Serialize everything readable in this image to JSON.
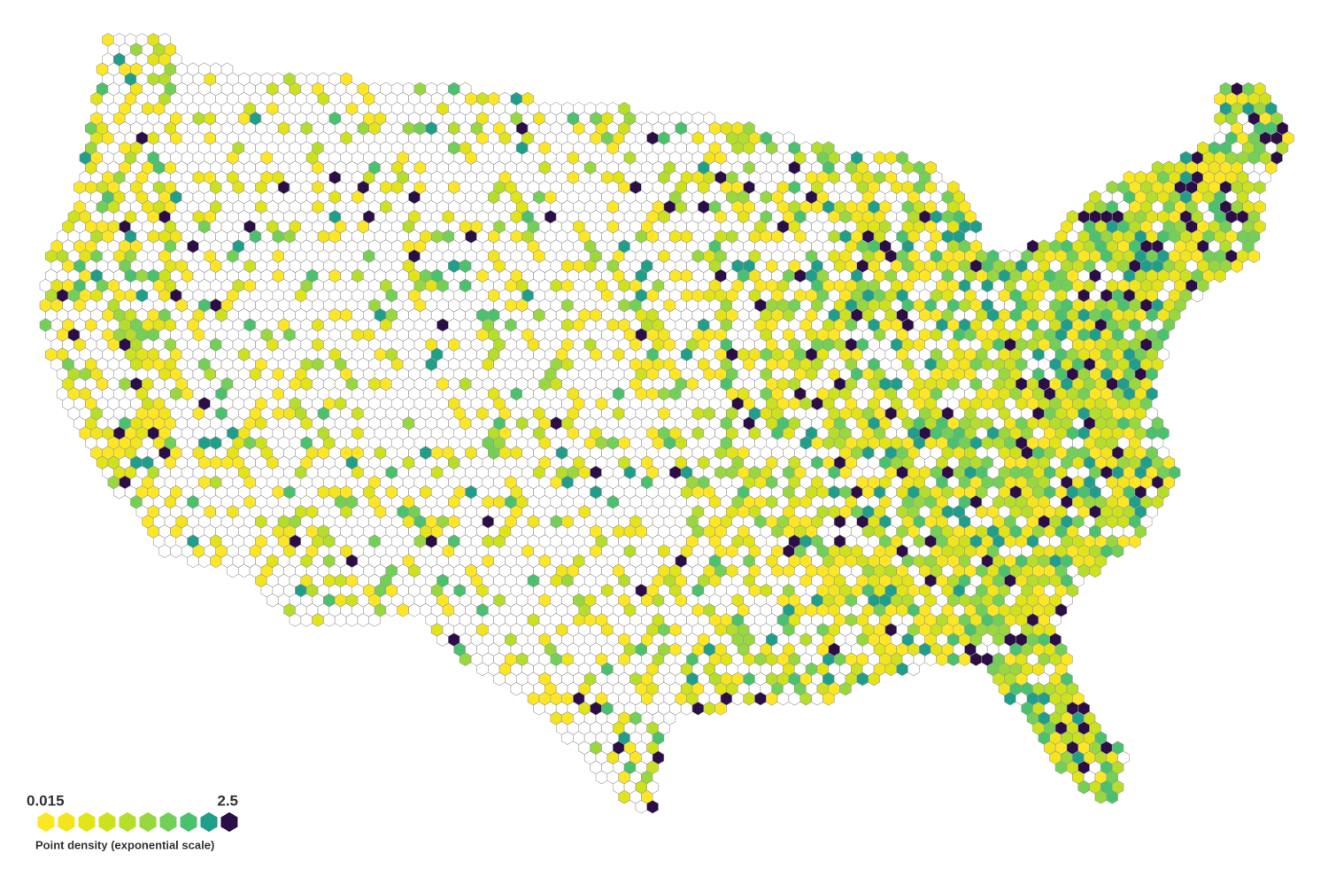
{
  "map": {
    "hex_colors": [
      "#fde725",
      "#f2e51e",
      "#e2e418",
      "#cde11d",
      "#b5de2b",
      "#98d83e",
      "#73d056",
      "#4ac16d",
      "#1f9e89",
      "#2c0e47"
    ]
  },
  "legend": {
    "min": 0.015,
    "max": 2.5,
    "title": "Point density (exponential scale)"
  }
}
